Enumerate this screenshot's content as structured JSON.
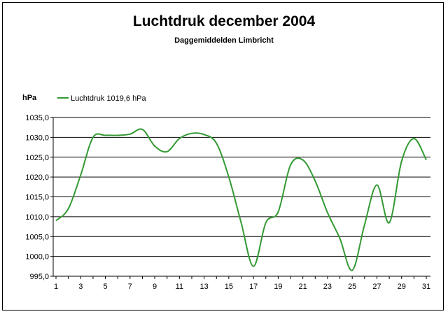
{
  "chart_data": {
    "type": "line",
    "title": "Luchtdruk december 2004",
    "subtitle": "Daggemiddelden Limbricht",
    "ylabel": "hPa",
    "xlabel": "",
    "ylim": [
      995,
      1035
    ],
    "xlim": [
      1,
      31
    ],
    "y_ticks": [
      "995,0",
      "1000,0",
      "1005,0",
      "1010,0",
      "1015,0",
      "1020,0",
      "1025,0",
      "1030,0",
      "1035,0"
    ],
    "x_ticks": [
      "1",
      "3",
      "5",
      "7",
      "9",
      "11",
      "13",
      "15",
      "17",
      "19",
      "21",
      "23",
      "25",
      "27",
      "29",
      "31"
    ],
    "grid": "horizontal",
    "legend_position": "top-left",
    "series": [
      {
        "name": "Luchtdruk 1019,6 hPa",
        "color": "#339933",
        "x": [
          1,
          2,
          3,
          4,
          5,
          6,
          7,
          8,
          9,
          10,
          11,
          12,
          13,
          14,
          15,
          16,
          17,
          18,
          19,
          20,
          21,
          22,
          23,
          24,
          25,
          26,
          27,
          28,
          29,
          30,
          31
        ],
        "values": [
          1009.0,
          1012.0,
          1020.5,
          1030.0,
          1030.5,
          1030.5,
          1030.8,
          1032.0,
          1027.8,
          1026.4,
          1029.7,
          1031.0,
          1030.7,
          1028.5,
          1020.0,
          1008.5,
          997.5,
          1008.5,
          1011.2,
          1023.0,
          1024.3,
          1019.0,
          1011.0,
          1004.5,
          996.5,
          1008.0,
          1018.0,
          1008.5,
          1024.0,
          1029.7,
          1024.3
        ]
      }
    ]
  }
}
